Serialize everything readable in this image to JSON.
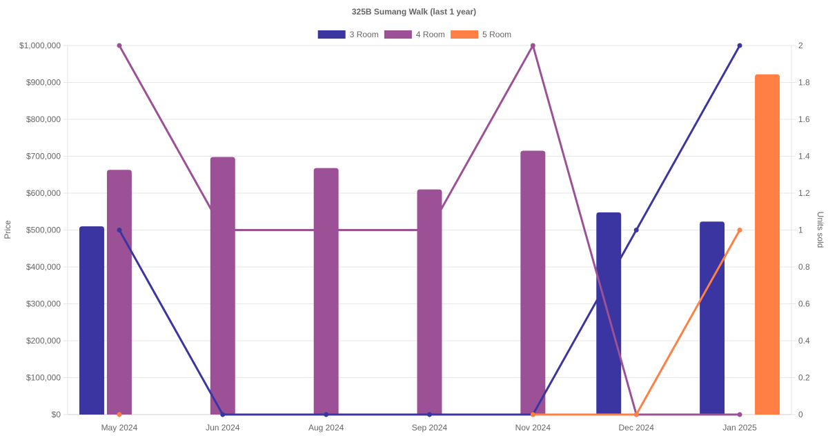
{
  "chart_data": {
    "type": "bar",
    "title": "325B Sumang Walk (last 1 year)",
    "categories": [
      "May 2024",
      "Jun 2024",
      "Aug 2024",
      "Sep 2024",
      "Nov 2024",
      "Dec 2024",
      "Jan 2025"
    ],
    "ylabel": "Price",
    "y2label": "Units sold",
    "ylim": [
      0,
      1000000
    ],
    "y2lim": [
      0,
      2
    ],
    "y_ticks": [
      "$0",
      "$100,000",
      "$200,000",
      "$300,000",
      "$400,000",
      "$500,000",
      "$600,000",
      "$700,000",
      "$800,000",
      "$900,000",
      "$1,000,000"
    ],
    "y2_ticks": [
      "0",
      "0.2",
      "0.4",
      "0.6",
      "0.8",
      "1",
      "1.2",
      "1.4",
      "1.6",
      "1.8",
      "2"
    ],
    "grid": true,
    "legend_position": "top-center",
    "series": [
      {
        "name": "3 Room",
        "color": "#3a35a0",
        "price": [
          510000,
          null,
          null,
          null,
          null,
          548000,
          523000
        ],
        "units": [
          1,
          0,
          0,
          0,
          0,
          1,
          2
        ]
      },
      {
        "name": "4 Room",
        "color": "#9c5096",
        "price": [
          663000,
          698000,
          668000,
          610000,
          715000,
          null,
          null
        ],
        "units": [
          2,
          1,
          1,
          1,
          2,
          0,
          0
        ]
      },
      {
        "name": "5 Room",
        "color": "#ff7f45",
        "price": [
          null,
          null,
          null,
          null,
          null,
          null,
          922000
        ],
        "units": [
          0,
          null,
          null,
          null,
          0,
          0,
          1
        ]
      }
    ]
  }
}
